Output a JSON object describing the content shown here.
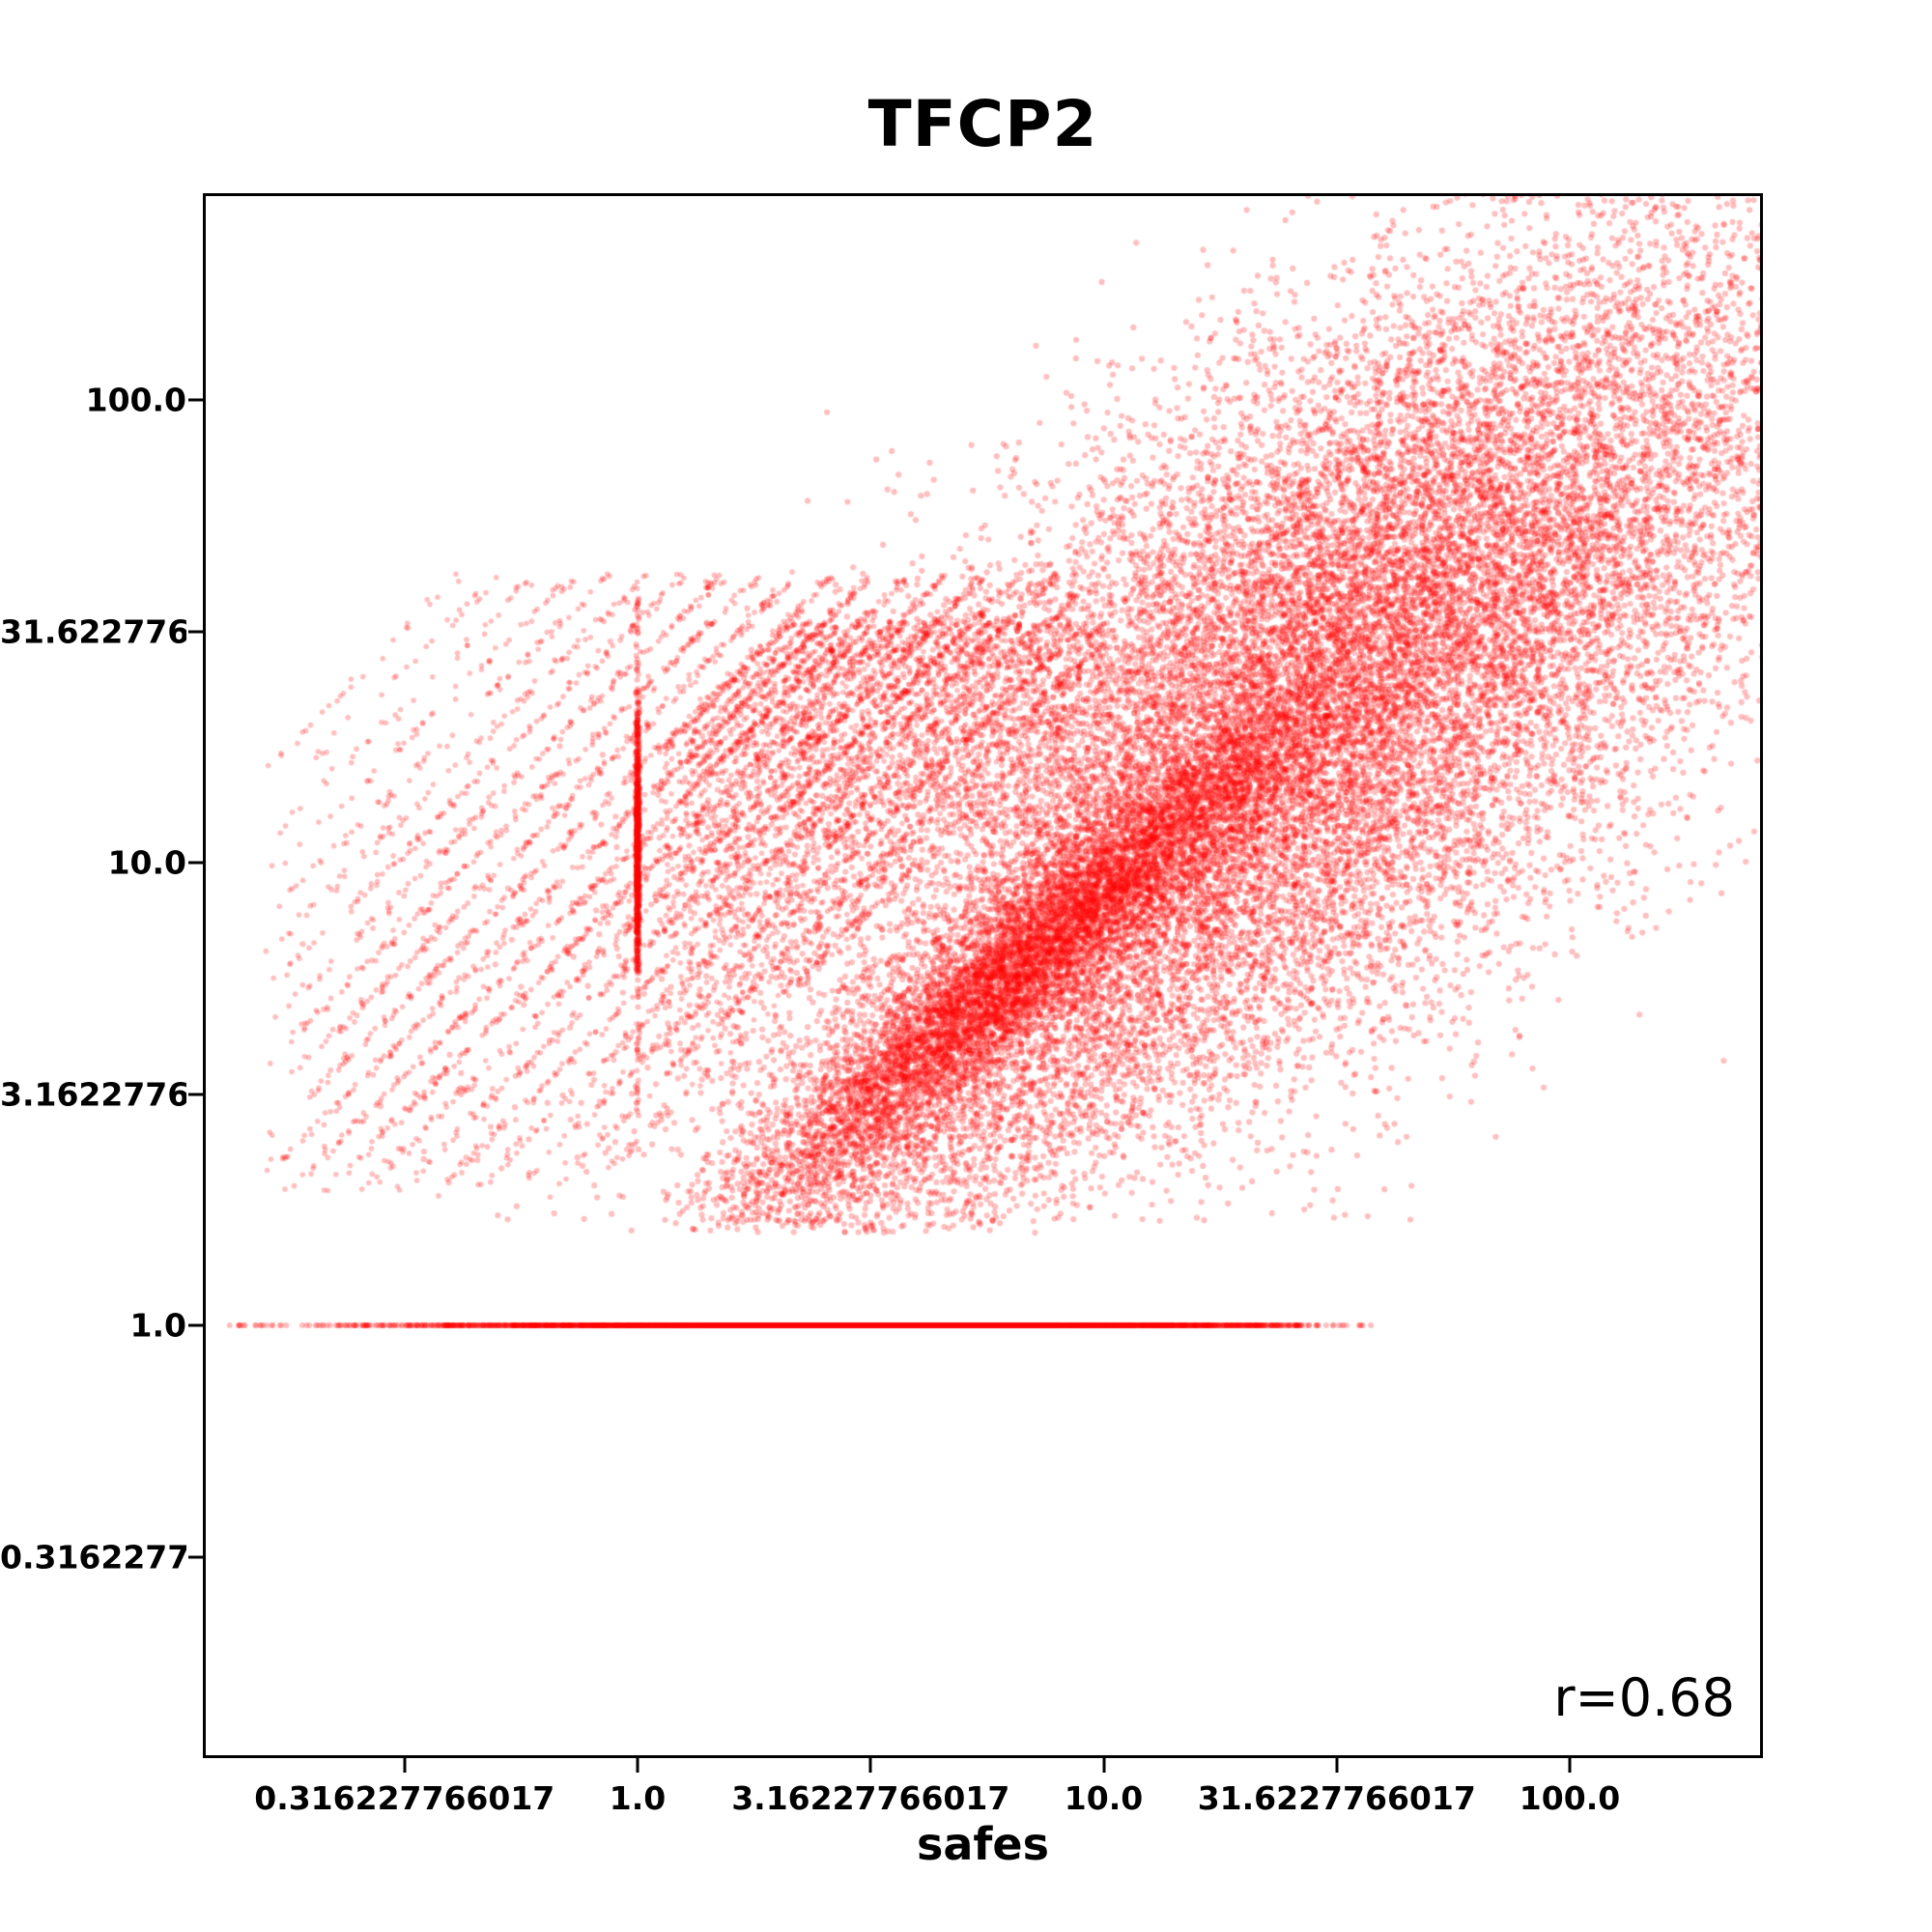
{
  "figure": {
    "title": "TFCP2",
    "x_axis_label": "safes",
    "correlation_annotation": "r=0.68"
  },
  "chart_data": {
    "type": "scatter",
    "title": "TFCP2",
    "xlabel": "safes",
    "ylabel": "",
    "x_scale": "log10",
    "y_scale": "log10",
    "xlim": [
      0.117,
      262
    ],
    "ylim": [
      0.116,
      282
    ],
    "x_tick_labels": [
      "0.316227766017",
      "1.0",
      "3.16227766017",
      "10.0",
      "31.6227766017",
      "100.0"
    ],
    "y_tick_labels": [
      "100.0",
      "31.6227766017",
      "10.0",
      "3.16227766017",
      "1.0",
      "0.316227766017"
    ],
    "annotation": "r=0.68",
    "correlation_r": 0.68,
    "grid": false,
    "legend": false,
    "marker": {
      "color": "#ff0000",
      "alpha": 0.25,
      "radius_px": 3.1,
      "line_radius_px": 3.0
    },
    "background": "#ffffff",
    "axis_color": "#000000",
    "seed": 1234,
    "point_cloud_spec": {
      "description": "Procedural spec in log10 space reproducing the scatter: correlated main cloud (r~0.68) with dense core near (35,25) and tail to (250,200); dense mid ridge near (7,6); sparse lower halo down to y~1.6; 45-degree count-ratio streak lines in the lower-left; dense vertical line of points at x=1; dense horizontal line of points at y=1.",
      "clouds": [
        {
          "name": "main-cloud",
          "n": 22000,
          "cx": 1.47,
          "cy": 1.39,
          "a": 0.46,
          "c": 0.46,
          "b": 0.3,
          "d": -0.12,
          "extra_y": 0.1,
          "ly_min": 0.22
        },
        {
          "name": "mid-ridge",
          "n": 7000,
          "cx": 0.84,
          "cy": 0.8,
          "a": 0.3,
          "c": 0.27,
          "b": 0.06,
          "d": -0.02,
          "extra_y": 0.05,
          "ly_min": 0.22
        },
        {
          "name": "lower-halo",
          "n": 2600,
          "cx": 0.78,
          "cy": 0.52,
          "a": 0.38,
          "c": 0.3,
          "b": 0.12,
          "d": -0.05,
          "extra_y": 0.12,
          "ly_min": 0.2
        }
      ],
      "streak_sets": [
        {
          "name": "diag-streaks",
          "logc_start": 0.4,
          "logc_step": 0.08,
          "count": 21,
          "lx_min": -0.8,
          "lx_max": 1.0,
          "ly_min": 0.28,
          "ly_max": 1.62,
          "cap_base": 1.05,
          "cap_slope": 0.45,
          "n_per_line": 320,
          "n_min": 25,
          "weight_center": 0.9,
          "weight_sd": 0.45,
          "jitter": 0.004
        },
        {
          "name": "fine-hatch",
          "logc_start": 0.45,
          "logc_step": 0.035,
          "count": 22,
          "lx_min": 0.05,
          "lx_max": 1.02,
          "ly_min": 0.35,
          "ly_max": 1.52,
          "cap_base": 1.02,
          "cap_slope": 0.0,
          "n_per_line": 130,
          "n_min": 40,
          "weight_center": 0.85,
          "weight_sd": 0.35,
          "jitter": 0.003
        }
      ],
      "vline": {
        "lx": 0.0,
        "n_dense": 900,
        "ly_mean": 1.02,
        "ly_sd": 0.15,
        "ly_clip_lo": 0.76,
        "ly_clip_hi": 1.38,
        "n_sparse": 140,
        "ly_lo": 0.45,
        "ly_hi": 1.6,
        "jitter": 0.002
      },
      "hline": {
        "ly": 0.0,
        "n_dense": 5200,
        "lx_mean": 0.5,
        "lx_sd": 0.45,
        "lx_lo": -0.72,
        "lx_hi": 1.42,
        "sparse_segments": [
          [
            -0.88,
            -0.74,
            18
          ],
          [
            1.4,
            1.58,
            25
          ]
        ]
      }
    }
  }
}
